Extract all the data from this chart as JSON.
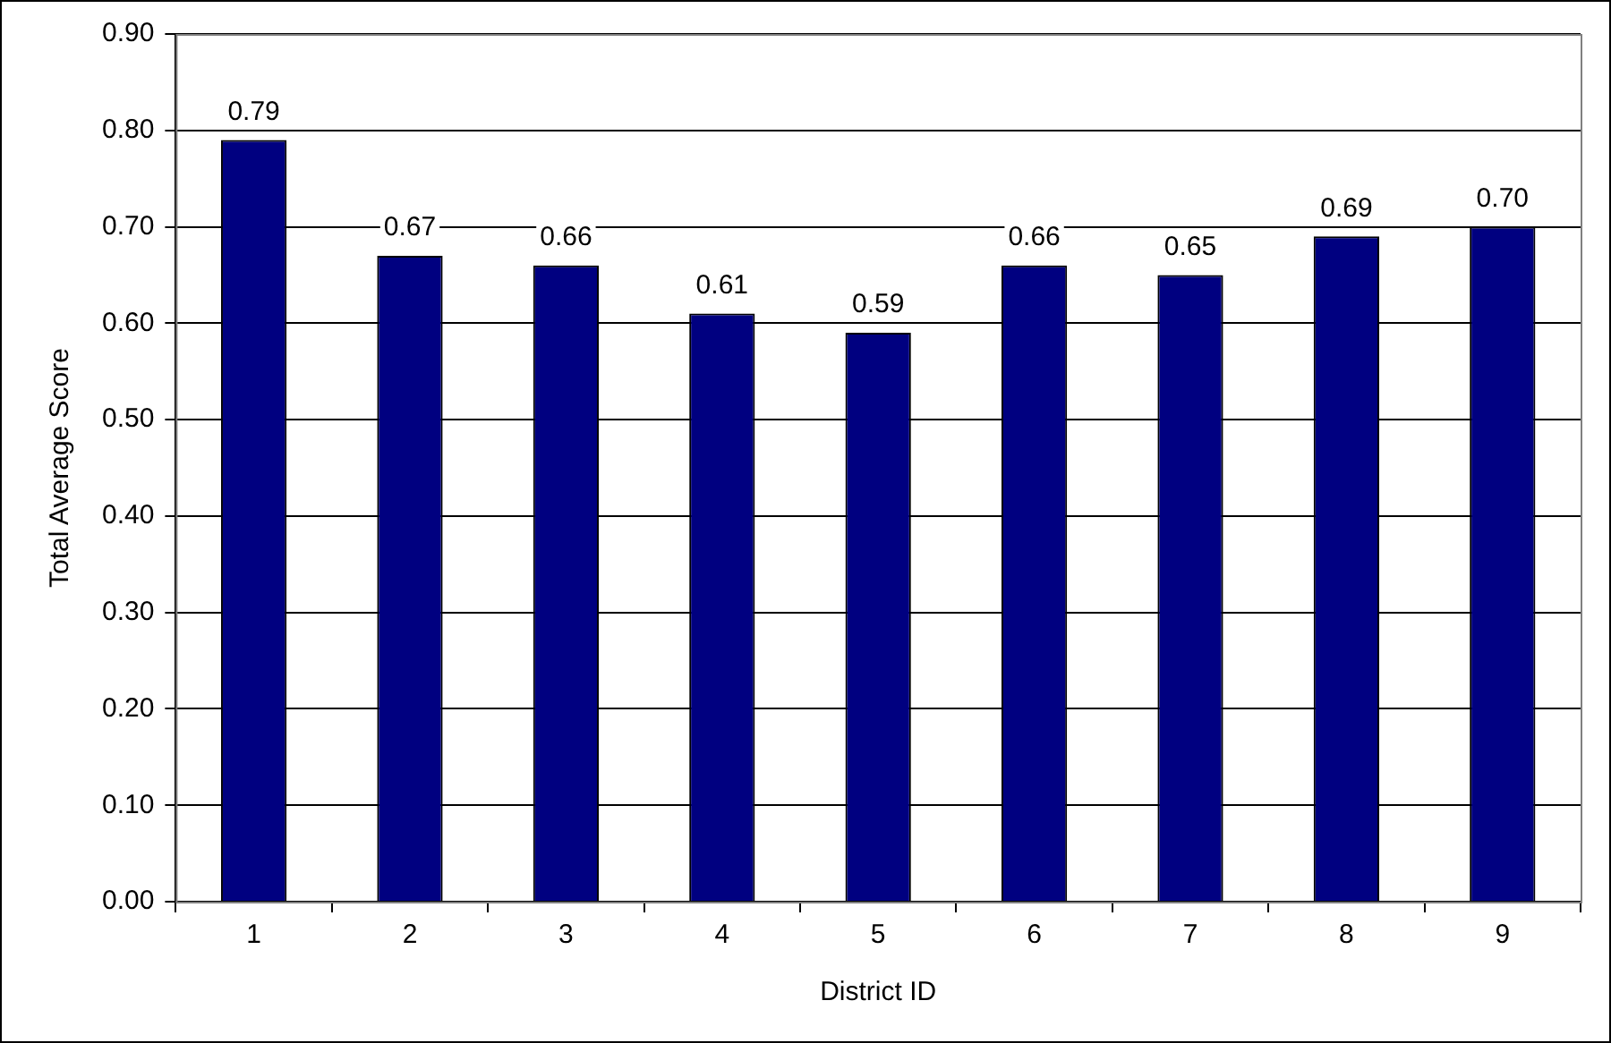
{
  "chart_data": {
    "type": "bar",
    "xlabel": "District ID",
    "ylabel": "Total Average Score",
    "categories": [
      "1",
      "2",
      "3",
      "4",
      "5",
      "6",
      "7",
      "8",
      "9"
    ],
    "values": [
      0.79,
      0.67,
      0.66,
      0.61,
      0.59,
      0.66,
      0.65,
      0.69,
      0.7
    ],
    "value_labels": [
      "0.79",
      "0.67",
      "0.66",
      "0.61",
      "0.59",
      "0.66",
      "0.65",
      "0.69",
      "0.70"
    ],
    "color": "#000080",
    "ylim": [
      0,
      0.9
    ],
    "yticks": [
      {
        "value": 0,
        "label": "0.00"
      },
      {
        "value": 0.1,
        "label": "0.10"
      },
      {
        "value": 0.2,
        "label": "0.20"
      },
      {
        "value": 0.3,
        "label": "0.30"
      },
      {
        "value": 0.4,
        "label": "0.40"
      },
      {
        "value": 0.5,
        "label": "0.50"
      },
      {
        "value": 0.6,
        "label": "0.60"
      },
      {
        "value": 0.7,
        "label": "0.70"
      },
      {
        "value": 0.8,
        "label": "0.80"
      },
      {
        "value": 0.9,
        "label": "0.90"
      }
    ],
    "grid": "y",
    "legend": false
  }
}
